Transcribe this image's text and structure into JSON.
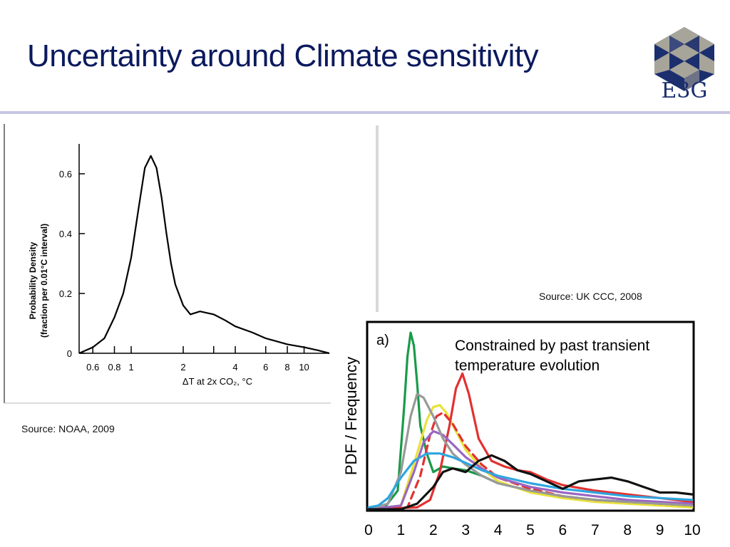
{
  "slide": {
    "title": "Uncertainty around Climate sensitivity",
    "logo_text": "E3G",
    "source_left": "Source: NOAA, 2009",
    "source_right": "Source: UK CCC, 2008"
  },
  "colors": {
    "title": "#0b1a5e",
    "rule": "#c7c6e2",
    "logo_dark": "#1b2f6e",
    "logo_light": "#a7a49a"
  },
  "chart_data": [
    {
      "type": "line",
      "xscale": "log",
      "xlabel": "ΔT at 2x CO₂, °C",
      "ylabel_line1": "Probability Density",
      "ylabel_line2": "(fraction per 0.01°C interval)",
      "x_ticks_labeled": [
        0.6,
        0.8,
        1,
        2,
        4,
        6,
        8,
        10
      ],
      "x_ticks_minor": [
        3
      ],
      "y_ticks": [
        0,
        0.2,
        0.4,
        0.6
      ],
      "xlim": [
        0.5,
        14
      ],
      "ylim": [
        0,
        0.7
      ],
      "series": [
        {
          "color": "#000000",
          "x": [
            0.5,
            0.6,
            0.7,
            0.8,
            0.9,
            1.0,
            1.1,
            1.2,
            1.3,
            1.4,
            1.5,
            1.6,
            1.7,
            1.8,
            2.0,
            2.2,
            2.5,
            3.0,
            3.5,
            4.0,
            5.0,
            6.0,
            8.0,
            10.0,
            12.0,
            14.0
          ],
          "y": [
            0.0,
            0.02,
            0.05,
            0.12,
            0.2,
            0.32,
            0.48,
            0.62,
            0.66,
            0.62,
            0.52,
            0.4,
            0.3,
            0.23,
            0.16,
            0.13,
            0.14,
            0.13,
            0.11,
            0.09,
            0.07,
            0.05,
            0.03,
            0.02,
            0.01,
            0.0
          ]
        }
      ]
    },
    {
      "type": "line",
      "annotation_label": "a)",
      "annotation": "Constrained by past transient temperature evolution",
      "ylabel": "PDF / Frequency",
      "x_ticks": [
        0,
        1,
        2,
        3,
        4,
        5,
        6,
        7,
        8,
        9,
        10
      ],
      "xlim": [
        0,
        10
      ],
      "ylim": [
        0,
        1
      ],
      "series": [
        {
          "color": "#1a9a4a",
          "style": "solid",
          "x": [
            0,
            0.5,
            0.9,
            1.1,
            1.2,
            1.3,
            1.4,
            1.5,
            1.6,
            1.8,
            2.0,
            2.3,
            2.6,
            3.0,
            3.5,
            4.0,
            5.0,
            6.0,
            7.0,
            8.0,
            9.0,
            10.0
          ],
          "y": [
            0,
            0.01,
            0.1,
            0.55,
            0.82,
            0.95,
            0.88,
            0.68,
            0.45,
            0.3,
            0.2,
            0.23,
            0.22,
            0.21,
            0.18,
            0.14,
            0.1,
            0.07,
            0.05,
            0.04,
            0.03,
            0.02
          ]
        },
        {
          "color": "#e8e23a",
          "style": "solid",
          "x": [
            0,
            1.0,
            1.5,
            1.8,
            2.0,
            2.2,
            2.4,
            2.7,
            3.0,
            3.5,
            4.0,
            5.0,
            6.0,
            7.0,
            8.0,
            9.0,
            10.0
          ],
          "y": [
            0,
            0.02,
            0.3,
            0.48,
            0.55,
            0.56,
            0.52,
            0.42,
            0.32,
            0.22,
            0.15,
            0.09,
            0.06,
            0.04,
            0.03,
            0.02,
            0.01
          ]
        },
        {
          "color": "#e23131",
          "style": "dashed",
          "x": [
            0,
            1.2,
            1.6,
            1.9,
            2.1,
            2.3,
            2.6,
            3.0,
            3.5,
            4.0,
            5.0,
            6.0,
            7.0,
            8.0,
            9.0,
            10.0
          ],
          "y": [
            0,
            0.01,
            0.18,
            0.4,
            0.5,
            0.52,
            0.46,
            0.34,
            0.24,
            0.17,
            0.11,
            0.07,
            0.05,
            0.04,
            0.03,
            0.02
          ]
        },
        {
          "color": "#e23131",
          "style": "solid",
          "x": [
            0,
            1.5,
            1.9,
            2.2,
            2.5,
            2.7,
            2.9,
            3.1,
            3.4,
            3.8,
            4.2,
            4.6,
            5.0,
            5.5,
            6.0,
            7.0,
            8.0,
            9.0,
            10.0
          ],
          "y": [
            0,
            0.01,
            0.05,
            0.2,
            0.45,
            0.65,
            0.73,
            0.62,
            0.38,
            0.26,
            0.23,
            0.21,
            0.2,
            0.16,
            0.13,
            0.1,
            0.08,
            0.06,
            0.04
          ]
        },
        {
          "color": "#9a66c2",
          "style": "solid",
          "x": [
            0,
            1.0,
            1.4,
            1.7,
            2.0,
            2.3,
            2.6,
            3.0,
            3.5,
            4.0,
            5.0,
            6.0,
            7.0,
            8.0,
            9.0,
            10.0
          ],
          "y": [
            0,
            0.02,
            0.2,
            0.36,
            0.42,
            0.4,
            0.35,
            0.28,
            0.22,
            0.17,
            0.12,
            0.09,
            0.07,
            0.05,
            0.04,
            0.03
          ]
        },
        {
          "color": "#999999",
          "style": "solid",
          "x": [
            0,
            0.6,
            1.0,
            1.3,
            1.5,
            1.7,
            2.0,
            2.3,
            2.6,
            3.0,
            3.5,
            4.0,
            5.0,
            6.0,
            7.0,
            8.0,
            9.0,
            10.0
          ],
          "y": [
            0,
            0.03,
            0.2,
            0.5,
            0.62,
            0.6,
            0.5,
            0.38,
            0.3,
            0.24,
            0.18,
            0.14,
            0.1,
            0.07,
            0.05,
            0.04,
            0.03,
            0.02
          ]
        },
        {
          "color": "#2ea6e0",
          "style": "solid",
          "x": [
            0,
            0.3,
            0.6,
            1.0,
            1.4,
            1.8,
            2.2,
            2.6,
            3.0,
            3.5,
            4.0,
            5.0,
            6.0,
            7.0,
            8.0,
            9.0,
            10.0
          ],
          "y": [
            0.01,
            0.02,
            0.06,
            0.17,
            0.26,
            0.3,
            0.3,
            0.28,
            0.25,
            0.21,
            0.18,
            0.14,
            0.11,
            0.09,
            0.07,
            0.06,
            0.05
          ]
        },
        {
          "color": "#111111",
          "style": "solid",
          "x": [
            0,
            1.0,
            1.5,
            2.0,
            2.3,
            2.6,
            3.0,
            3.4,
            3.8,
            4.2,
            4.6,
            5.0,
            5.5,
            6.0,
            6.5,
            7.0,
            7.5,
            8.0,
            8.5,
            9.0,
            9.5,
            10.0
          ],
          "y": [
            0,
            0.0,
            0.03,
            0.12,
            0.2,
            0.22,
            0.2,
            0.26,
            0.29,
            0.26,
            0.21,
            0.19,
            0.15,
            0.11,
            0.15,
            0.16,
            0.17,
            0.15,
            0.12,
            0.09,
            0.09,
            0.08
          ]
        }
      ]
    }
  ]
}
